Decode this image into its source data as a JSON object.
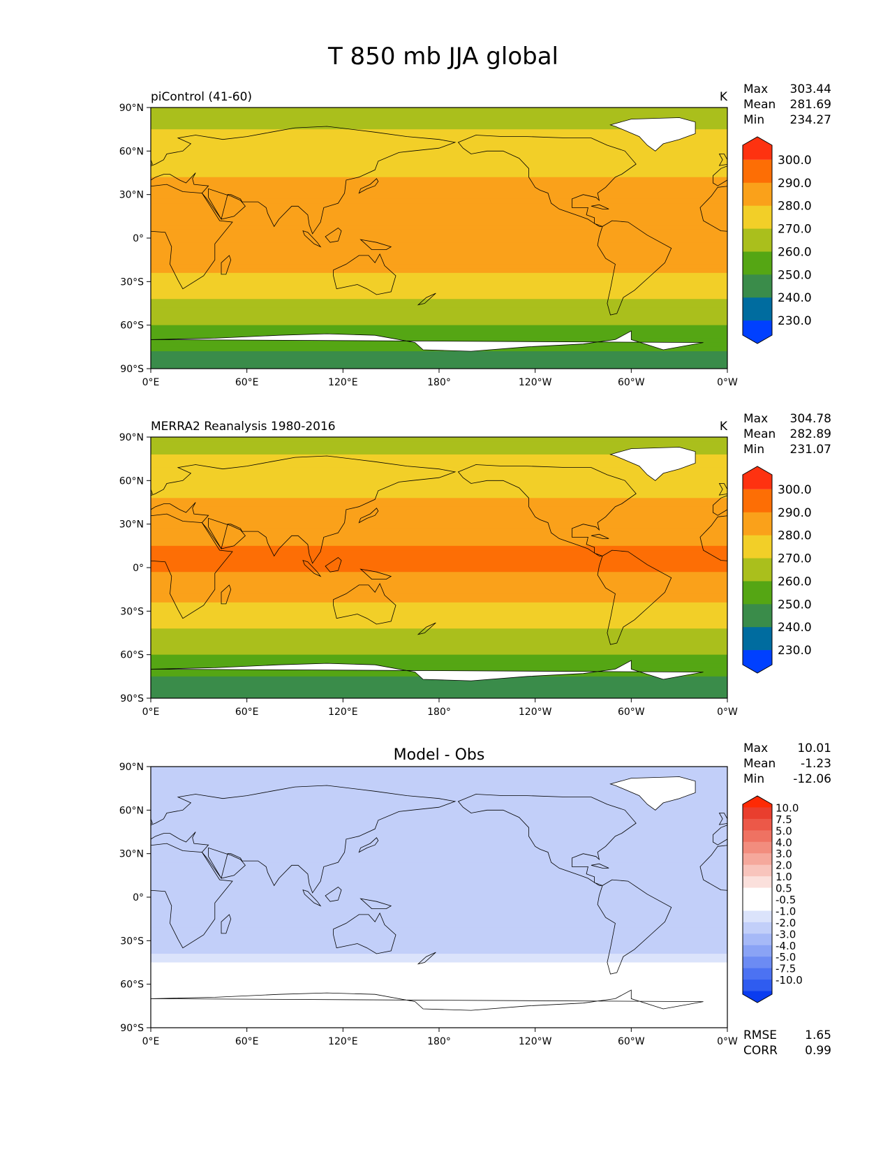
{
  "figure": {
    "title": "T 850 mb JJA global"
  },
  "colors": {
    "abs_scale": [
      "#0040ff",
      "#006c9f",
      "#3a8c4a",
      "#55a614",
      "#aabf1c",
      "#f2cf28",
      "#faa11a",
      "#fd6e05",
      "#fe3210"
    ],
    "diff_scale": [
      "#0a3cf0",
      "#2f5cf0",
      "#4c72f2",
      "#6c8bf3",
      "#8aa3f5",
      "#a6b9f7",
      "#c2cff9",
      "#dbe3fb",
      "#ffffff",
      "#ffffff",
      "#fbe0dc",
      "#f8c4bc",
      "#f5a89c",
      "#f28d7e",
      "#ef7262",
      "#ec5848",
      "#e93e2e",
      "#fe2a05"
    ],
    "landmask": "#ffffff",
    "coast": "#000000"
  },
  "axes": {
    "lat_ticks": [
      "90°N",
      "60°N",
      "30°N",
      "0°",
      "30°S",
      "60°S",
      "90°S"
    ],
    "lon_ticks": [
      "0°E",
      "60°E",
      "120°E",
      "180°",
      "120°W",
      "60°W",
      "0°W"
    ]
  },
  "panels": [
    {
      "left_title": "piControl (41-60)",
      "center_title": "",
      "units": "K",
      "stats": [
        {
          "label": "Max",
          "value": "303.44"
        },
        {
          "label": "Mean",
          "value": "281.69"
        },
        {
          "label": "Min",
          "value": "234.27"
        }
      ],
      "colorbar": {
        "tick_labels": [
          "300.0",
          "290.0",
          "280.0",
          "270.0",
          "260.0",
          "250.0",
          "240.0",
          "230.0"
        ]
      },
      "footer": []
    },
    {
      "left_title": "MERRA2 Reanalysis 1980-2016",
      "center_title": "",
      "units": "K",
      "stats": [
        {
          "label": "Max",
          "value": "304.78"
        },
        {
          "label": "Mean",
          "value": "282.89"
        },
        {
          "label": "Min",
          "value": "231.07"
        }
      ],
      "colorbar": {
        "tick_labels": [
          "300.0",
          "290.0",
          "280.0",
          "270.0",
          "260.0",
          "250.0",
          "240.0",
          "230.0"
        ]
      },
      "footer": []
    },
    {
      "left_title": "",
      "center_title": "Model - Obs",
      "units": "",
      "stats": [
        {
          "label": "Max",
          "value": "10.01"
        },
        {
          "label": "Mean",
          "value": "-1.23"
        },
        {
          "label": "Min",
          "value": "-12.06"
        }
      ],
      "colorbar": {
        "tick_labels": [
          "10.0",
          "7.5",
          "5.0",
          "4.0",
          "3.0",
          "2.0",
          "1.0",
          "0.5",
          "-0.5",
          "-1.0",
          "-2.0",
          "-3.0",
          "-4.0",
          "-5.0",
          "-7.5",
          "-10.0"
        ]
      },
      "footer": [
        {
          "label": "RMSE",
          "value": "1.65"
        },
        {
          "label": "CORR",
          "value": "0.99"
        }
      ]
    }
  ],
  "chart_data": [
    {
      "type": "heatmap",
      "title": "piControl (41-60)",
      "units": "K",
      "xlim": [
        0,
        360
      ],
      "ylim": [
        -90,
        90
      ],
      "levels": [
        230,
        240,
        250,
        260,
        270,
        280,
        290,
        300
      ],
      "zonal_profile": {
        "lat": [
          90,
          75,
          60,
          45,
          30,
          15,
          0,
          -15,
          -30,
          -45,
          -60,
          -75,
          -90
        ],
        "value": [
          262,
          270,
          275,
          279,
          286,
          288,
          289,
          285,
          276,
          268,
          260,
          252,
          245
        ]
      },
      "stats": {
        "max": 303.44,
        "mean": 281.69,
        "min": 234.27
      }
    },
    {
      "type": "heatmap",
      "title": "MERRA2 Reanalysis 1980-2016",
      "units": "K",
      "xlim": [
        0,
        360
      ],
      "ylim": [
        -90,
        90
      ],
      "levels": [
        230,
        240,
        250,
        260,
        270,
        280,
        290,
        300
      ],
      "zonal_profile": {
        "lat": [
          90,
          75,
          60,
          45,
          30,
          15,
          0,
          -15,
          -30,
          -45,
          -60,
          -75,
          -90
        ],
        "value": [
          264,
          272,
          277,
          281,
          288,
          290,
          291,
          286,
          277,
          269,
          261,
          250,
          242
        ]
      },
      "stats": {
        "max": 304.78,
        "mean": 282.89,
        "min": 231.07
      }
    },
    {
      "type": "heatmap",
      "title": "Model - Obs",
      "units": "",
      "xlim": [
        0,
        360
      ],
      "ylim": [
        -90,
        90
      ],
      "levels": [
        -10.0,
        -7.5,
        -5.0,
        -4.0,
        -3.0,
        -2.0,
        -1.0,
        -0.5,
        0.5,
        1.0,
        2.0,
        3.0,
        4.0,
        5.0,
        7.5,
        10.0
      ],
      "zonal_profile": {
        "lat": [
          90,
          75,
          60,
          45,
          30,
          15,
          0,
          -15,
          -30,
          -45,
          -60,
          -75,
          -90
        ],
        "value": [
          -1.5,
          -1.8,
          -1.5,
          -1.0,
          -1.2,
          -1.0,
          -1.5,
          -1.5,
          -1.8,
          -0.5,
          0.8,
          1.0,
          0.0
        ]
      },
      "stats": {
        "max": 10.01,
        "mean": -1.23,
        "min": -12.06,
        "rmse": 1.65,
        "corr": 0.99
      }
    }
  ]
}
